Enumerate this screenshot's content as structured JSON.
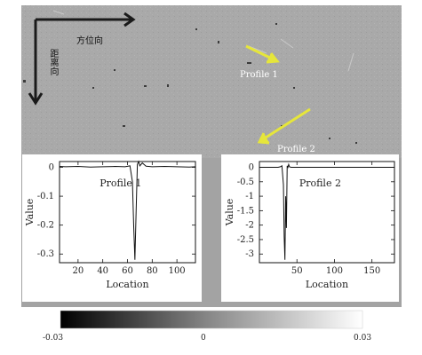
{
  "directions": {
    "horizontal": "方位向",
    "vertical": "距离向"
  },
  "annotations": {
    "profile1": "Profile 1",
    "profile2": "Profile 2"
  },
  "colors": {
    "arrow": "#e6e63a",
    "axis_arrow": "#1a1a1a",
    "image_bg": "#a8a8a8"
  },
  "colorbar": {
    "min_label": "-0.03",
    "mid_label": "0",
    "max_label": "0.03"
  },
  "chart_data": [
    {
      "type": "line",
      "title": "Profile 1",
      "xlabel": "Location",
      "ylabel": "Value",
      "xlim": [
        5,
        115
      ],
      "ylim": [
        -0.33,
        0.02
      ],
      "xticks": [
        20,
        40,
        60,
        80,
        100
      ],
      "yticks": [
        0,
        -0.1,
        -0.2,
        -0.3
      ],
      "x": [
        5,
        10,
        20,
        30,
        40,
        50,
        58,
        62,
        64,
        65,
        66,
        67,
        68,
        69,
        70,
        72,
        75,
        80,
        90,
        100,
        110,
        115
      ],
      "y": [
        0.003,
        0.002,
        0.003,
        0.001,
        0.002,
        0.003,
        0.002,
        0.005,
        -0.05,
        -0.2,
        -0.32,
        -0.15,
        0.01,
        0.02,
        0.005,
        0.015,
        0.004,
        0.002,
        0.003,
        0.002,
        0.001,
        0.002
      ]
    },
    {
      "type": "line",
      "title": "Profile 2",
      "xlabel": "Location",
      "ylabel": "Value",
      "xlim": [
        0,
        180
      ],
      "ylim": [
        -3.3,
        0.2
      ],
      "xticks": [
        50,
        100,
        150
      ],
      "yticks": [
        0,
        -0.5,
        -1,
        -1.5,
        -2,
        -2.5,
        -3
      ],
      "x": [
        0,
        10,
        20,
        25,
        28,
        30,
        32,
        33,
        34,
        35,
        36,
        37,
        38,
        39,
        40,
        42,
        45,
        50,
        100,
        150,
        180
      ],
      "y": [
        0.0,
        0.0,
        0.0,
        0.0,
        0.02,
        0.05,
        -0.6,
        -2.4,
        -3.2,
        -1.0,
        -2.1,
        0.05,
        0.0,
        0.1,
        0.02,
        0.0,
        0.0,
        0.0,
        0.0,
        0.0,
        0.0
      ]
    }
  ]
}
